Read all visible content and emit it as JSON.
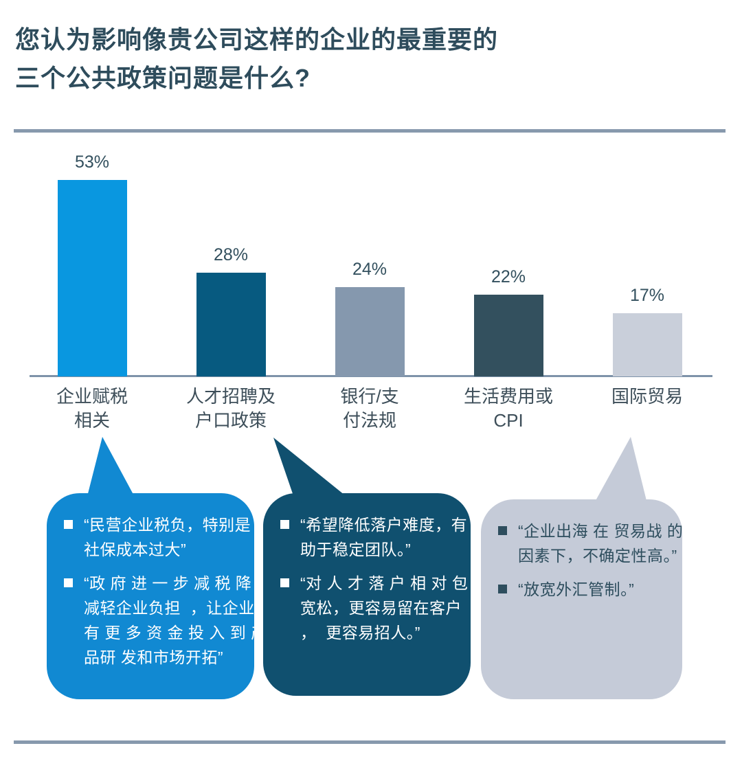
{
  "title": {
    "line1": "您认为影响像贵公司这样的企业的最重要的",
    "line2": "三个公共政策问题是什么?"
  },
  "colors": {
    "title_text": "#2E4C5C",
    "divider": "#8799AD",
    "axis_line": "#7E93A9",
    "value_label_text": "#33505E",
    "category_label_text": "#3D4E59"
  },
  "chart_data": {
    "type": "bar",
    "title": "您认为影响像贵公司这样的企业的最重要的三个公共政策问题是什么?",
    "categories": [
      "企业赋税相关",
      "人才招聘及户口政策",
      "银行/支付法规",
      "生活费用或CPI",
      "国际贸易"
    ],
    "category_lines": [
      [
        "企业赋税",
        "相关"
      ],
      [
        "人才招聘及",
        "户口政策"
      ],
      [
        "银行/支",
        "付法规"
      ],
      [
        "生活费用或",
        "CPI"
      ],
      [
        "国际贸易"
      ]
    ],
    "values": [
      53,
      28,
      24,
      22,
      17
    ],
    "value_labels": [
      "53%",
      "28%",
      "24%",
      "22%",
      "17%"
    ],
    "bar_colors": [
      "#0997E0",
      "#075A80",
      "#8598AE",
      "#33505E",
      "#C9CFDA"
    ],
    "unit": "%",
    "ylim": [
      0,
      60
    ],
    "grid": false,
    "legend": false,
    "xlabel": "",
    "ylabel": ""
  },
  "callouts": [
    {
      "target_category": "企业赋税相关",
      "bubble_color": "#1189D2",
      "text_color": "#FFFFFF",
      "bullet_color": "#FFFFFF",
      "bullets": [
        [
          "“民营企业税负，特别是",
          "社保成本过大”"
        ],
        [
          "“政 府 进 一 步 减 税 降 费",
          "减轻企业负担  ，让企业",
          "有 更 多 资 金 投 入 到 产",
          "品研 发和市场开拓”"
        ]
      ]
    },
    {
      "target_category": "人才招聘及户口政策",
      "bubble_color": "#10506F",
      "text_color": "#FFFFFF",
      "bullet_color": "#FFFFFF",
      "bullets": [
        [
          "“希望降低落户难度，有",
          "助于稳定团队。”"
        ],
        [
          "“对 人 才 落 户 相 对 包 容",
          "宽松，更容易留在客户",
          "，  更容易招人。”"
        ]
      ]
    },
    {
      "target_category": "国际贸易",
      "bubble_color": "#C5CBD8",
      "text_color": "#2E4E5E",
      "bullet_color": "#2E4E5E",
      "bullets": [
        [
          "“企业出海 在 贸易战 的",
          "因素下，不确定性高。”"
        ],
        [
          "“放宽外汇管制。”"
        ]
      ]
    }
  ]
}
